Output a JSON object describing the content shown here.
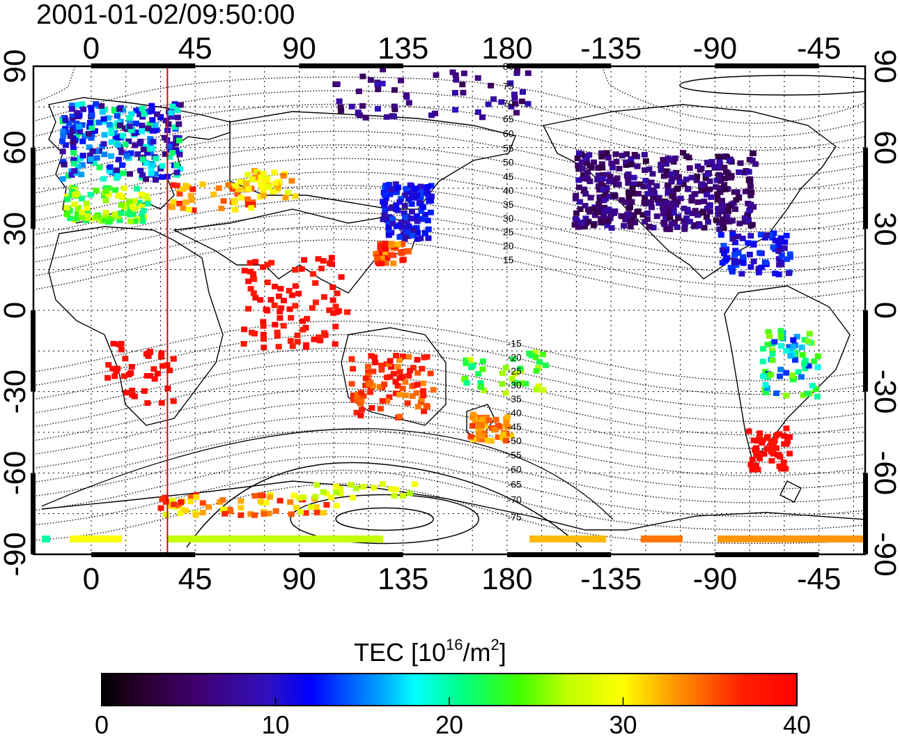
{
  "title": "2001-01-02/09:50:00",
  "colorbar": {
    "label_main": "TEC  [10",
    "label_exp1": "16",
    "label_mid": "/m",
    "label_exp2": "2",
    "label_end": "]",
    "ticks": [
      "0",
      "10",
      "20",
      "30",
      "40"
    ],
    "range": [
      0,
      40
    ]
  },
  "axes": {
    "top_lon_labels": [
      "0",
      "45",
      "90",
      "135",
      "180",
      "-135",
      "-90",
      "-45"
    ],
    "bottom_lon_labels": [
      "0",
      "45",
      "90",
      "135",
      "180",
      "-135",
      "-90",
      "-45"
    ],
    "left_lat_labels": [
      "90",
      "60",
      "30",
      "0",
      "-30",
      "-60",
      "-90"
    ],
    "right_lat_labels": [
      "90",
      "60",
      "30",
      "0",
      "-30",
      "-60",
      "-90"
    ],
    "lon_range": [
      -25,
      335
    ],
    "lat_range": [
      -90,
      90
    ],
    "grid": "dotted"
  },
  "contour_labels": [
    "80",
    "75",
    "70",
    "65",
    "60",
    "55",
    "50",
    "45",
    "40",
    "35",
    "30",
    "25",
    "20",
    "15",
    "-15",
    "-20",
    "-25",
    "-30",
    "-35",
    "-40",
    "-45",
    "-50",
    "-55",
    "-60",
    "-65",
    "-70",
    "-75"
  ],
  "meridian_marker": {
    "lon": 33,
    "color": "#e00000"
  },
  "colors": {
    "frame": "#000000",
    "marker": "#e00000"
  }
}
